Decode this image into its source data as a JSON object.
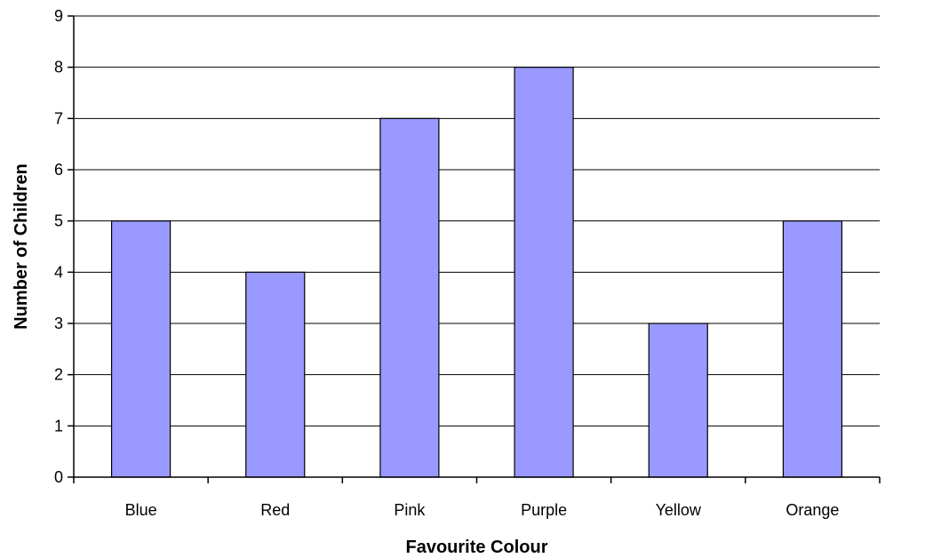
{
  "chart_data": {
    "type": "bar",
    "title": "",
    "xlabel": "Favourite Colour",
    "ylabel": "Number of Children",
    "categories": [
      "Blue",
      "Red",
      "Pink",
      "Purple",
      "Yellow",
      "Orange"
    ],
    "values": [
      5,
      4,
      7,
      8,
      3,
      5
    ],
    "ylim": [
      0,
      9
    ],
    "yticks": [
      "0",
      "1",
      "2",
      "3",
      "4",
      "5",
      "6",
      "7",
      "8",
      "9"
    ],
    "grid": true,
    "bar_color": "#9999ff",
    "bar_edge_color": "#000000"
  }
}
